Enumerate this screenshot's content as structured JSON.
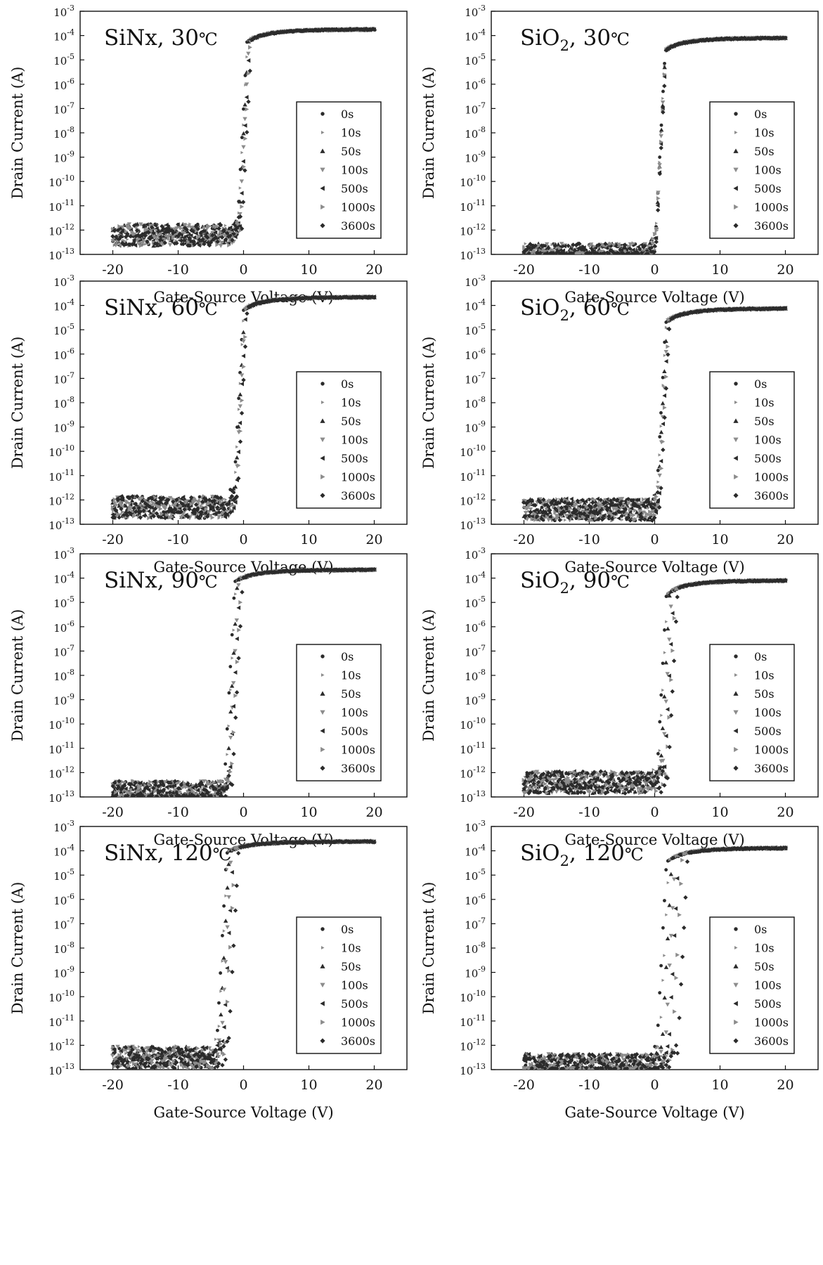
{
  "figure": {
    "background": "#ffffff",
    "marker_color": "#2b2b2b",
    "light_marker_color": "#8c8c8c"
  },
  "legend_entries": [
    {
      "label": "0s",
      "marker": "dot"
    },
    {
      "label": "10s",
      "marker": "triangle-right-small"
    },
    {
      "label": "50s",
      "marker": "triangle-up"
    },
    {
      "label": "100s",
      "marker": "triangle-down"
    },
    {
      "label": "500s",
      "marker": "triangle-left"
    },
    {
      "label": "1000s",
      "marker": "triangle-right"
    },
    {
      "label": "3600s",
      "marker": "diamond"
    }
  ],
  "chart_data": [
    {
      "id": "sinx-30",
      "type": "scatter",
      "title_parts": [
        "SiNx, 30",
        "℃"
      ],
      "title_sub": "",
      "xlabel": "Gate-Source Voltage (V)",
      "ylabel": "Drain Current (A)",
      "xlim": [
        -25,
        25
      ],
      "ylim_log10": [
        -13,
        -3
      ],
      "xticks": [
        -20,
        -10,
        0,
        10,
        20
      ],
      "yticks_exp": [
        -13,
        -12,
        -11,
        -10,
        -9,
        -8,
        -7,
        -6,
        -5,
        -4,
        -3
      ],
      "log_scale_y": true,
      "grid": false,
      "legend_position": "right",
      "vth_shifts": [
        -1.0,
        -0.9,
        -0.8,
        -0.7,
        -0.6,
        -0.5,
        -0.3
      ],
      "i_off_log10": -12.2,
      "i_on": 0.00018,
      "vt_ref": -1.0
    },
    {
      "id": "sio2-30",
      "type": "scatter",
      "title_parts": [
        "SiO",
        ", 30",
        "℃"
      ],
      "title_sub": "2",
      "xlabel": "Gate-Source Voltage (V)",
      "ylabel": "Drain Current (A)",
      "xlim": [
        -25,
        25
      ],
      "ylim_log10": [
        -13,
        -3
      ],
      "xticks": [
        -20,
        -10,
        0,
        10,
        20
      ],
      "yticks_exp": [
        -13,
        -12,
        -11,
        -10,
        -9,
        -8,
        -7,
        -6,
        -5,
        -4,
        -3
      ],
      "log_scale_y": true,
      "grid": false,
      "legend_position": "right",
      "vth_shifts": [
        0.0,
        0.0,
        0.05,
        0.05,
        0.1,
        0.1,
        0.15
      ],
      "i_off_log10": -13.0,
      "i_on": 8e-05,
      "vt_ref": 0.0
    },
    {
      "id": "sinx-60",
      "type": "scatter",
      "title_parts": [
        "SiNx, 60",
        "℃"
      ],
      "title_sub": "",
      "xlabel": "Gate-Source Voltage (V)",
      "ylabel": "Drain Current (A)",
      "xlim": [
        -25,
        25
      ],
      "ylim_log10": [
        -13,
        -3
      ],
      "xticks": [
        -20,
        -10,
        0,
        10,
        20
      ],
      "yticks_exp": [
        -13,
        -12,
        -11,
        -10,
        -9,
        -8,
        -7,
        -6,
        -5,
        -4,
        -3
      ],
      "log_scale_y": true,
      "grid": false,
      "legend_position": "right",
      "vth_shifts": [
        -1.6,
        -1.5,
        -1.4,
        -1.3,
        -1.2,
        -1.1,
        -1.0
      ],
      "i_off_log10": -12.3,
      "i_on": 0.00022,
      "vt_ref": -1.5
    },
    {
      "id": "sio2-60",
      "type": "scatter",
      "title_parts": [
        "SiO",
        ", 60",
        "℃"
      ],
      "title_sub": "2",
      "xlabel": "Gate-Source Voltage (V)",
      "ylabel": "Drain Current (A)",
      "xlim": [
        -25,
        25
      ],
      "ylim_log10": [
        -13,
        -3
      ],
      "xticks": [
        -20,
        -10,
        0,
        10,
        20
      ],
      "yticks_exp": [
        -13,
        -12,
        -11,
        -10,
        -9,
        -8,
        -7,
        -6,
        -5,
        -4,
        -3
      ],
      "log_scale_y": true,
      "grid": false,
      "legend_position": "right",
      "vth_shifts": [
        0.2,
        0.3,
        0.4,
        0.5,
        0.6,
        0.7,
        0.8
      ],
      "i_off_log10": -12.4,
      "i_on": 7.5e-05,
      "vt_ref": 0.3
    },
    {
      "id": "sinx-90",
      "type": "scatter",
      "title_parts": [
        "SiNx, 90",
        "℃"
      ],
      "title_sub": "",
      "xlabel": "Gate-Source Voltage (V)",
      "ylabel": "Drain Current (A)",
      "xlim": [
        -25,
        25
      ],
      "ylim_log10": [
        -13,
        -3
      ],
      "xticks": [
        -20,
        -10,
        0,
        10,
        20
      ],
      "yticks_exp": [
        -13,
        -12,
        -11,
        -10,
        -9,
        -8,
        -7,
        -6,
        -5,
        -4,
        -3
      ],
      "log_scale_y": true,
      "grid": false,
      "legend_position": "right",
      "vth_shifts": [
        -3.0,
        -2.8,
        -2.6,
        -2.4,
        -2.2,
        -2.0,
        -1.8
      ],
      "i_off_log10": -12.8,
      "i_on": 0.00022,
      "vt_ref": -3.0
    },
    {
      "id": "sio2-90",
      "type": "scatter",
      "title_parts": [
        "SiO",
        ", 90",
        "℃"
      ],
      "title_sub": "2",
      "xlabel": "Gate-Source Voltage (V)",
      "ylabel": "Drain Current (A)",
      "xlim": [
        -25,
        25
      ],
      "ylim_log10": [
        -13,
        -3
      ],
      "xticks": [
        -20,
        -10,
        0,
        10,
        20
      ],
      "yticks_exp": [
        -13,
        -12,
        -11,
        -10,
        -9,
        -8,
        -7,
        -6,
        -5,
        -4,
        -3
      ],
      "log_scale_y": true,
      "grid": false,
      "legend_position": "right",
      "vth_shifts": [
        0.3,
        0.5,
        0.8,
        1.1,
        1.4,
        1.7,
        2.0
      ],
      "i_off_log10": -12.4,
      "i_on": 8e-05,
      "vt_ref": 0.5
    },
    {
      "id": "sinx-120",
      "type": "scatter",
      "title_parts": [
        "SiNx, 120",
        "℃"
      ],
      "title_sub": "",
      "xlabel": "Gate-Source Voltage (V)",
      "ylabel": "Drain Current (A)",
      "xlim": [
        -25,
        25
      ],
      "ylim_log10": [
        -13,
        -3
      ],
      "xticks": [
        -20,
        -10,
        0,
        10,
        20
      ],
      "yticks_exp": [
        -13,
        -12,
        -11,
        -10,
        -9,
        -8,
        -7,
        -6,
        -5,
        -4,
        -3
      ],
      "log_scale_y": true,
      "grid": false,
      "legend_position": "right",
      "vth_shifts": [
        -4.2,
        -4.0,
        -3.8,
        -3.5,
        -3.2,
        -2.9,
        -2.4
      ],
      "i_off_log10": -12.5,
      "i_on": 0.00024,
      "vt_ref": -4.5
    },
    {
      "id": "sio2-120",
      "type": "scatter",
      "title_parts": [
        "SiO",
        ", 120",
        "℃"
      ],
      "title_sub": "2",
      "xlabel": "Gate-Source Voltage (V)",
      "ylabel": "Drain Current (A)",
      "xlim": [
        -25,
        25
      ],
      "ylim_log10": [
        -13,
        -3
      ],
      "xticks": [
        -20,
        -10,
        0,
        10,
        20
      ],
      "yticks_exp": [
        -13,
        -12,
        -11,
        -10,
        -9,
        -8,
        -7,
        -6,
        -5,
        -4,
        -3
      ],
      "log_scale_y": true,
      "grid": false,
      "legend_position": "right",
      "vth_shifts": [
        0.2,
        0.6,
        1.0,
        1.5,
        2.0,
        2.6,
        3.4
      ],
      "i_off_log10": -12.8,
      "i_on": 0.00013,
      "vt_ref": 0.5
    }
  ]
}
